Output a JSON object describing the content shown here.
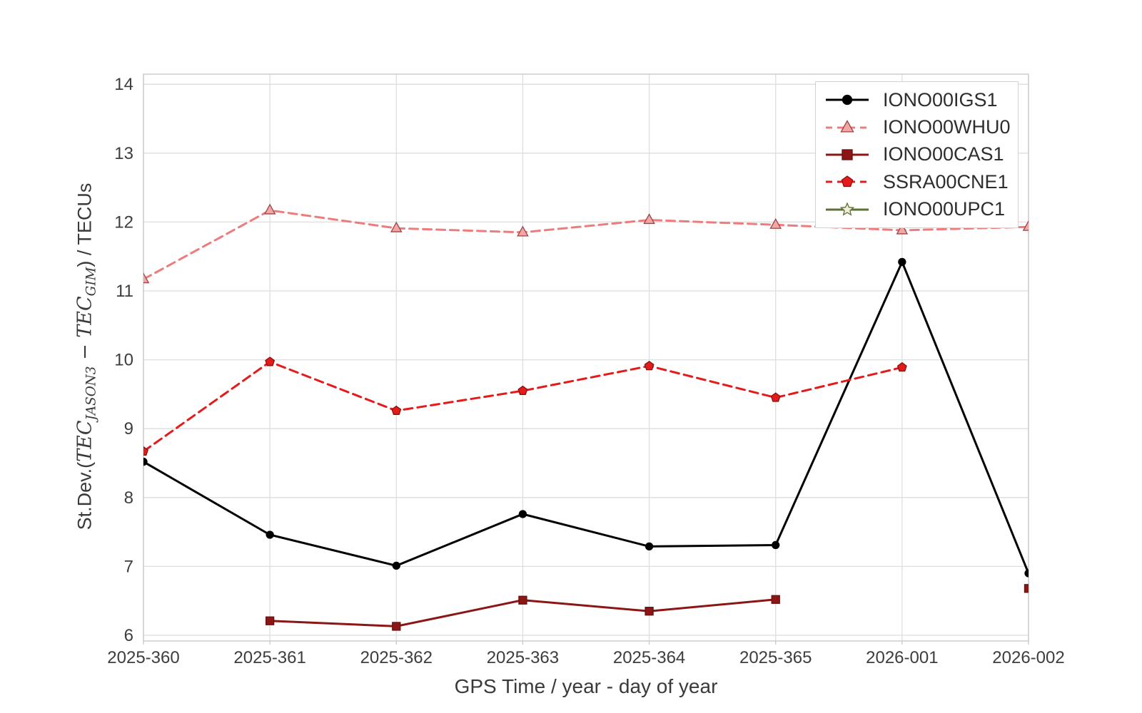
{
  "figure": {
    "background": "#ffffff"
  },
  "labels": {
    "xlabel": "GPS Time / year - day of year",
    "ylabel_prefix": "St.Dev.(",
    "ylabel_tec1": "TEC",
    "ylabel_sub1": "JASON3",
    "ylabel_minus": " − ",
    "ylabel_tec2": "TEC",
    "ylabel_sub2": "GIM",
    "ylabel_suffix": ") / TECUs"
  },
  "style": {
    "grid_color": "#dedede",
    "spine_color": "#c9c9c9",
    "tick_text_color": "#3d3d3d"
  },
  "chart_data": {
    "type": "line",
    "title": "",
    "xlabel": "GPS Time / year - day of year",
    "ylabel": "St.Dev.(TEC_JASON3 − TEC_GIM) / TECUs",
    "categories": [
      "2025-360",
      "2025-361",
      "2025-362",
      "2025-363",
      "2025-364",
      "2025-365",
      "2026-001",
      "2026-002"
    ],
    "yticks": [
      6,
      7,
      8,
      9,
      10,
      11,
      12,
      13,
      14
    ],
    "ytick_labels": [
      "6",
      "7",
      "8",
      "9",
      "10",
      "11",
      "12",
      "13",
      "14"
    ],
    "ylim": [
      5.9,
      14.15
    ],
    "grid": true,
    "legend_position": "upper right",
    "series": [
      {
        "name": "IONO00IGS1",
        "line_style": "solid",
        "color": "#000000",
        "marker": "circle",
        "marker_fill": "#000000",
        "marker_edge": "#000000",
        "values": [
          8.52,
          7.46,
          7.01,
          7.76,
          7.29,
          7.31,
          11.42,
          6.9
        ]
      },
      {
        "name": "IONO00WHU0",
        "line_style": "dashed",
        "color": "#ee7c7c",
        "marker": "triangle",
        "marker_fill": "#f2a6a6",
        "marker_edge": "#9e4444",
        "values": [
          11.17,
          12.17,
          11.91,
          11.85,
          12.03,
          11.96,
          11.88,
          11.93
        ]
      },
      {
        "name": "IONO00CAS1",
        "line_style": "solid",
        "color": "#8b1616",
        "marker": "square",
        "marker_fill": "#8b1616",
        "marker_edge": "#6b0e0e",
        "values": [
          null,
          6.21,
          6.13,
          6.51,
          6.35,
          6.52,
          null,
          6.68
        ]
      },
      {
        "name": "SSRA00CNE1",
        "line_style": "dashed",
        "color": "#e41b1b",
        "marker": "pentagon",
        "marker_fill": "#e41b1b",
        "marker_edge": "#8b0f0f",
        "values": [
          8.67,
          9.97,
          9.26,
          9.55,
          9.91,
          9.45,
          9.89,
          null
        ]
      },
      {
        "name": "IONO00UPC1",
        "line_style": "solid",
        "color": "#5d7038",
        "marker": "star",
        "marker_fill": "#f0f0d8",
        "marker_edge": "#5d7038",
        "values": [
          null,
          null,
          null,
          null,
          null,
          null,
          null,
          null
        ]
      }
    ]
  }
}
